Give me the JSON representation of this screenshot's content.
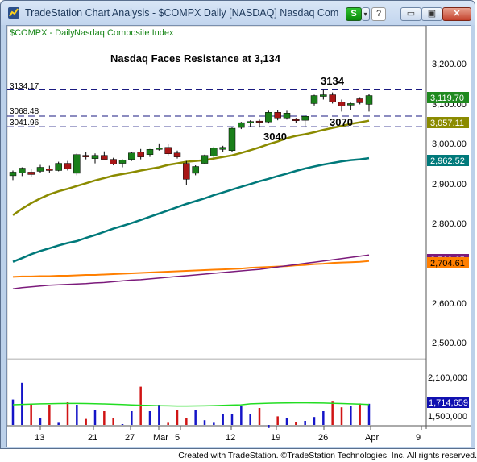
{
  "window": {
    "title": "TradeStation Chart Analysis - $COMPX Daily [NASDAQ] Nasdaq Com...",
    "buttons": {
      "strategy": "S",
      "strategy_drop": "▾",
      "help": "?",
      "minimize": "▭",
      "maximize": "▣",
      "close": "✕"
    }
  },
  "chart": {
    "symbol_label": "$COMPX - Daily",
    "symbol_desc": "Nasdaq Composite Index",
    "annotation_title": "Nasdaq Faces Resistance at 3,134",
    "level_labels": [
      "3134.17",
      "3068.48",
      "3041.96"
    ],
    "point_labels": [
      "3134",
      "3070",
      "3040"
    ],
    "price_ticks": [
      "3,200.00",
      "3,100.00",
      "3,000.00",
      "2,900.00",
      "2,800.00",
      "2,600.00",
      "2,500.00"
    ],
    "price_boxes": [
      {
        "label": "3,119.70",
        "bg": "#1f8a1f",
        "fg": "#ffffff"
      },
      {
        "label": "3,057.11",
        "bg": "#8b8b00",
        "fg": "#ffffff"
      },
      {
        "label": "2,962.52",
        "bg": "#00797a",
        "fg": "#ffffff"
      },
      {
        "label": "2,719.65",
        "bg": "#7b1a7b",
        "fg": "#ffffff"
      },
      {
        "label": "2,704.61",
        "bg": "#ff7f00",
        "fg": "#000000"
      }
    ],
    "volume_ticks": [
      "2,100,000",
      "1,500,000"
    ],
    "volume_box": {
      "label": "1,714,659",
      "bg": "#1010b0",
      "fg": "#ffffff"
    },
    "date_ticks": [
      "13",
      "21",
      "27",
      "Mar",
      "5",
      "12",
      "19",
      "26",
      "Apr",
      "9"
    ],
    "colors": {
      "up": "#1a7f1a",
      "down": "#a81616",
      "ma_fast": "#8b8b00",
      "ma_mid": "#00797a",
      "ma_slow": "#7b1a7b",
      "ma_long": "#ff7f00",
      "vol_up": "#1414c8",
      "vol_down": "#d01414",
      "vol_avg": "#22dd22"
    }
  },
  "chart_data": {
    "type": "candlestick",
    "candles": [
      {
        "o": 2919,
        "h": 2932,
        "l": 2908,
        "c": 2928
      },
      {
        "o": 2926,
        "h": 2940,
        "l": 2918,
        "c": 2938
      },
      {
        "o": 2928,
        "h": 2936,
        "l": 2915,
        "c": 2922
      },
      {
        "o": 2930,
        "h": 2946,
        "l": 2926,
        "c": 2940
      },
      {
        "o": 2936,
        "h": 2944,
        "l": 2927,
        "c": 2932
      },
      {
        "o": 2932,
        "h": 2954,
        "l": 2930,
        "c": 2950
      },
      {
        "o": 2950,
        "h": 2956,
        "l": 2932,
        "c": 2936
      },
      {
        "o": 2925,
        "h": 2975,
        "l": 2920,
        "c": 2972
      },
      {
        "o": 2970,
        "h": 2978,
        "l": 2960,
        "c": 2966
      },
      {
        "o": 2962,
        "h": 2975,
        "l": 2950,
        "c": 2970
      },
      {
        "o": 2970,
        "h": 2980,
        "l": 2962,
        "c": 2960
      },
      {
        "o": 2960,
        "h": 2964,
        "l": 2945,
        "c": 2948
      },
      {
        "o": 2950,
        "h": 2960,
        "l": 2940,
        "c": 2958
      },
      {
        "o": 2960,
        "h": 2978,
        "l": 2956,
        "c": 2976
      },
      {
        "o": 2978,
        "h": 2986,
        "l": 2960,
        "c": 2966
      },
      {
        "o": 2972,
        "h": 2986,
        "l": 2966,
        "c": 2985
      },
      {
        "o": 2986,
        "h": 3000,
        "l": 2982,
        "c": 2988
      },
      {
        "o": 2990,
        "h": 2998,
        "l": 2970,
        "c": 2974
      },
      {
        "o": 2976,
        "h": 2982,
        "l": 2962,
        "c": 2966
      },
      {
        "o": 2950,
        "h": 2956,
        "l": 2895,
        "c": 2910
      },
      {
        "o": 2925,
        "h": 2945,
        "l": 2920,
        "c": 2942
      },
      {
        "o": 2950,
        "h": 2972,
        "l": 2948,
        "c": 2970
      },
      {
        "o": 2968,
        "h": 2992,
        "l": 2964,
        "c": 2988
      },
      {
        "o": 2985,
        "h": 2994,
        "l": 2978,
        "c": 2990
      },
      {
        "o": 2982,
        "h": 3040,
        "l": 2978,
        "c": 3038
      },
      {
        "o": 3040,
        "h": 3054,
        "l": 3036,
        "c": 3052
      },
      {
        "o": 3052,
        "h": 3058,
        "l": 3042,
        "c": 3055
      },
      {
        "o": 3056,
        "h": 3060,
        "l": 3040,
        "c": 3054
      },
      {
        "o": 3054,
        "h": 3082,
        "l": 3050,
        "c": 3078
      },
      {
        "o": 3078,
        "h": 3084,
        "l": 3058,
        "c": 3064
      },
      {
        "o": 3064,
        "h": 3082,
        "l": 3060,
        "c": 3076
      },
      {
        "o": 3060,
        "h": 3064,
        "l": 3052,
        "c": 3058
      },
      {
        "o": 3058,
        "h": 3070,
        "l": 3040,
        "c": 3068
      },
      {
        "o": 3100,
        "h": 3122,
        "l": 3095,
        "c": 3120
      },
      {
        "o": 3118,
        "h": 3134,
        "l": 3110,
        "c": 3122
      },
      {
        "o": 3122,
        "h": 3128,
        "l": 3100,
        "c": 3104
      },
      {
        "o": 3104,
        "h": 3110,
        "l": 3080,
        "c": 3094
      },
      {
        "o": 3096,
        "h": 3102,
        "l": 3084,
        "c": 3100
      },
      {
        "o": 3112,
        "h": 3116,
        "l": 3098,
        "c": 3102
      },
      {
        "o": 3098,
        "h": 3124,
        "l": 3080,
        "c": 3120
      }
    ],
    "volume": [
      1780000,
      2040000,
      1700000,
      1500000,
      1700000,
      1420000,
      1750000,
      1700000,
      1480000,
      1620000,
      1600000,
      1500000,
      1400000,
      1600000,
      1980000,
      1600000,
      1700000,
      1420000,
      1620000,
      1500000,
      1620000,
      1460000,
      1420000,
      1550000,
      1550000,
      1680000,
      1550000,
      1650000,
      1340000,
      1520000,
      1490000,
      1430000,
      1450000,
      1510000,
      1600000,
      1760000,
      1660000,
      1680000,
      1720000,
      1714659
    ],
    "ma_fast": [
      2820,
      2836,
      2850,
      2862,
      2872,
      2880,
      2886,
      2893,
      2900,
      2907,
      2913,
      2919,
      2923,
      2927,
      2932,
      2936,
      2940,
      2946,
      2950,
      2954,
      2956,
      2958,
      2962,
      2966,
      2970,
      2976,
      2983,
      2990,
      2998,
      3005,
      3013,
      3019,
      3023,
      3028,
      3034,
      3039,
      3044,
      3049,
      3053,
      3057
    ],
    "ma_mid": [
      2703,
      2712,
      2722,
      2730,
      2737,
      2744,
      2750,
      2755,
      2763,
      2770,
      2778,
      2786,
      2793,
      2800,
      2808,
      2816,
      2824,
      2832,
      2840,
      2848,
      2855,
      2862,
      2870,
      2877,
      2884,
      2891,
      2898,
      2905,
      2911,
      2918,
      2924,
      2931,
      2937,
      2942,
      2947,
      2951,
      2955,
      2958,
      2960,
      2963
    ],
    "ma_slow": [
      2635,
      2638,
      2640,
      2642,
      2644,
      2645,
      2646,
      2647,
      2648,
      2650,
      2651,
      2653,
      2655,
      2657,
      2658,
      2660,
      2662,
      2664,
      2666,
      2668,
      2670,
      2672,
      2674,
      2676,
      2678,
      2680,
      2682,
      2684,
      2687,
      2690,
      2693,
      2696,
      2699,
      2702,
      2705,
      2708,
      2711,
      2714,
      2717,
      2720
    ],
    "ma_long": [
      2665,
      2666,
      2666,
      2667,
      2667,
      2668,
      2668,
      2669,
      2670,
      2670,
      2671,
      2672,
      2673,
      2674,
      2675,
      2676,
      2677,
      2678,
      2679,
      2680,
      2681,
      2682,
      2683,
      2684,
      2685,
      2686,
      2688,
      2689,
      2690,
      2691,
      2692,
      2694,
      2695,
      2697,
      2698,
      2700,
      2701,
      2702,
      2703,
      2705
    ],
    "levels": [
      3134.17,
      3068.48,
      3041.96
    ],
    "ylim": [
      2460,
      3260
    ],
    "volume_avg": 1700000
  }
}
